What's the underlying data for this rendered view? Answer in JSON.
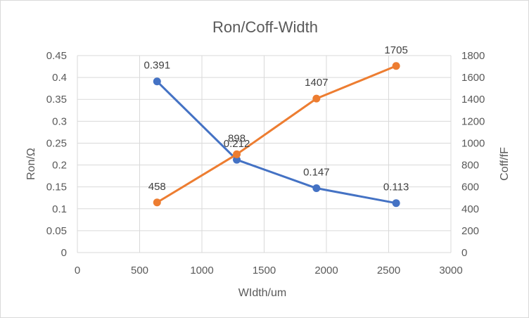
{
  "chart_data": {
    "type": "line",
    "title": "Ron/Coff-Width",
    "xlabel": "WIdth/um",
    "ylabel_left": "Ron/Ω",
    "ylabel_right": "Coff/fF",
    "xlim": [
      0,
      3000
    ],
    "ylim_left": [
      0,
      0.45
    ],
    "ylim_right": [
      0,
      1800
    ],
    "x_ticks": [
      "0",
      "500",
      "1000",
      "1500",
      "2000",
      "2500",
      "3000"
    ],
    "y_left_ticks": [
      "0",
      "0.05",
      "0.1",
      "0.15",
      "0.2",
      "0.25",
      "0.3",
      "0.35",
      "0.4",
      "0.45"
    ],
    "y_right_ticks": [
      "0",
      "200",
      "400",
      "600",
      "800",
      "1000",
      "1200",
      "1400",
      "1600",
      "1800"
    ],
    "grid": true,
    "series": [
      {
        "axis": "left",
        "color": "#4472c4",
        "x": [
          640,
          1280,
          1920,
          2560
        ],
        "values": [
          0.391,
          0.212,
          0.147,
          0.113
        ],
        "labels": [
          "0.391",
          "0.212",
          "0.147",
          "0.113"
        ]
      },
      {
        "axis": "right",
        "color": "#ed7d31",
        "x": [
          640,
          1280,
          1920,
          2560
        ],
        "values": [
          458,
          898,
          1407,
          1705
        ],
        "labels": [
          "458",
          "898",
          "1407",
          "1705"
        ]
      }
    ]
  }
}
